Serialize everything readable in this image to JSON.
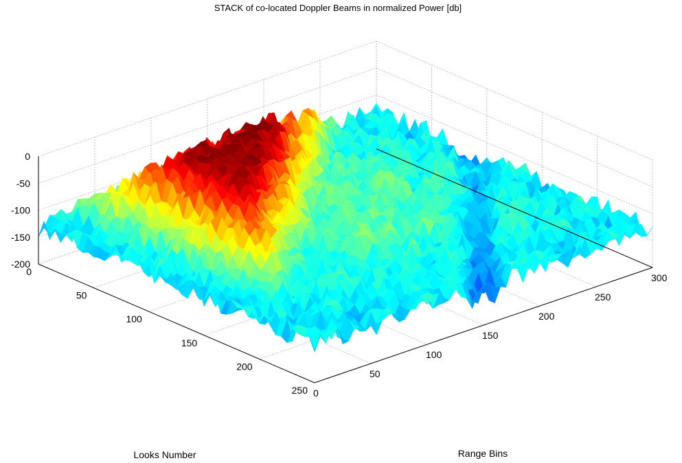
{
  "chart_data": {
    "type": "surface",
    "title": "STACK of co-located Doppler Beams in normalized Power [db]",
    "xlabel": "Range Bins",
    "ylabel": "Looks Number",
    "zlabel": "",
    "xlim": [
      0,
      300
    ],
    "ylim": [
      0,
      250
    ],
    "zlim": [
      -200,
      0
    ],
    "x_ticks": [
      "0",
      "50",
      "100",
      "150",
      "200",
      "250",
      "300"
    ],
    "y_ticks": [
      "0",
      "50",
      "100",
      "150",
      "200",
      "250"
    ],
    "z_ticks": [
      "0",
      "-50",
      "-100",
      "-150",
      "-200"
    ],
    "grid": true,
    "colormap": "jet",
    "surface_levels": {
      "noise_floor_db": -130,
      "plateau_db": -110,
      "wedge_peak_db": -20
    }
  }
}
